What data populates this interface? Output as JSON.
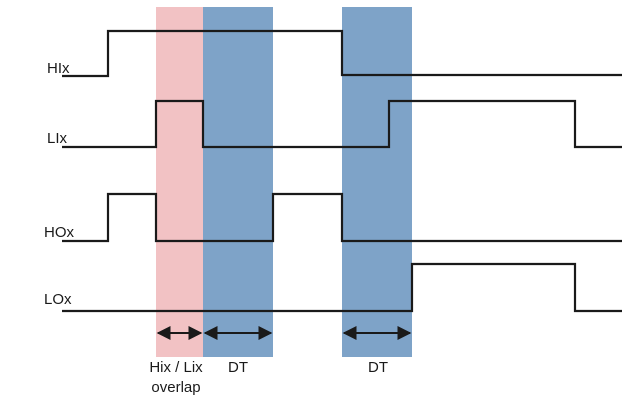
{
  "colors": {
    "overlap_region": "#f2c2c4",
    "dead_time_region": "#7ea3c8",
    "signal": "#1a1a1a"
  },
  "signals": [
    {
      "name": "HIx"
    },
    {
      "name": "LIx"
    },
    {
      "name": "HOx"
    },
    {
      "name": "LOx"
    }
  ],
  "annotations": {
    "overlap_line1": "Hix / Lix",
    "overlap_line2": "overlap",
    "dead_time_1": "DT",
    "dead_time_2": "DT"
  }
}
